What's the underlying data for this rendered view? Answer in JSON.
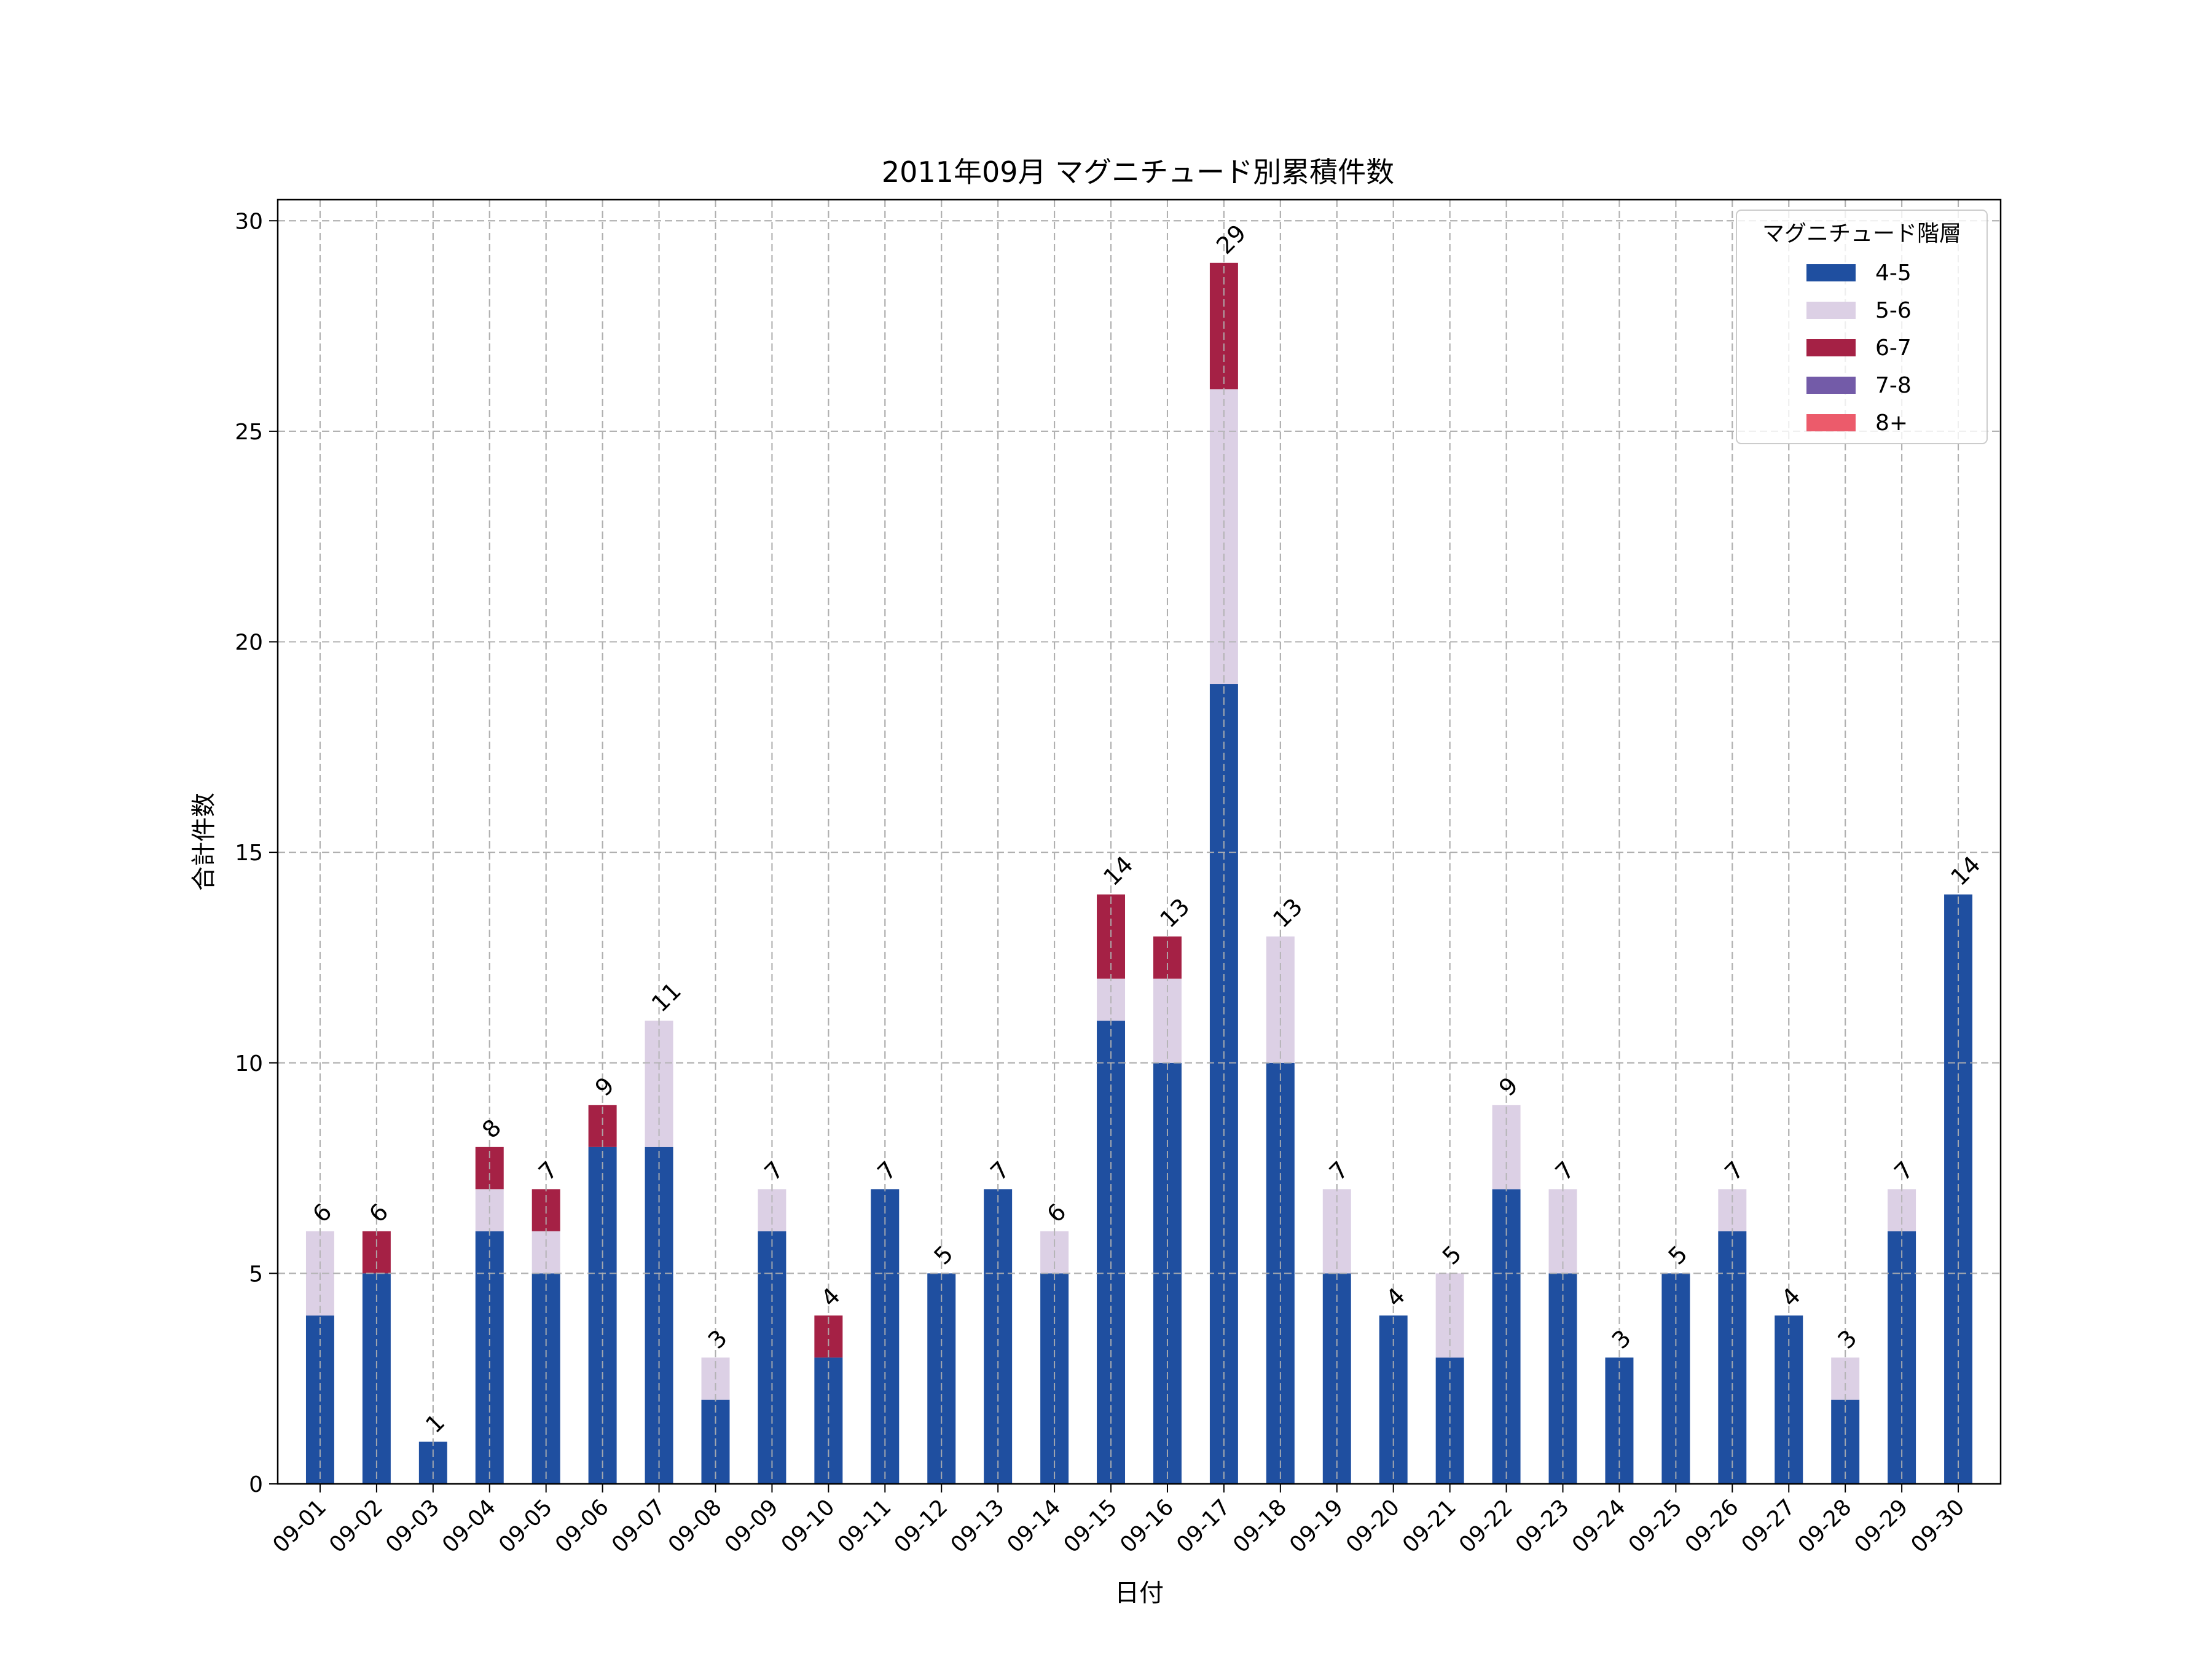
{
  "chart_data": {
    "type": "bar",
    "stacked": true,
    "title": "2011年09月 マグニチュード別累積件数",
    "xlabel": "日付",
    "ylabel": "合計件数",
    "ylim": [
      0,
      30.5
    ],
    "yticks": [
      0,
      5,
      10,
      15,
      20,
      25,
      30
    ],
    "grid": true,
    "legend_position": "top-right",
    "legend_title": "マグニチュード階層",
    "categories": [
      "09-01",
      "09-02",
      "09-03",
      "09-04",
      "09-05",
      "09-06",
      "09-07",
      "09-08",
      "09-09",
      "09-10",
      "09-11",
      "09-12",
      "09-13",
      "09-14",
      "09-15",
      "09-16",
      "09-17",
      "09-18",
      "09-19",
      "09-20",
      "09-21",
      "09-22",
      "09-23",
      "09-24",
      "09-25",
      "09-26",
      "09-27",
      "09-28",
      "09-29",
      "09-30"
    ],
    "series": [
      {
        "name": "4-5",
        "color": "#1f4fa0",
        "values": [
          4,
          5,
          1,
          6,
          5,
          8,
          8,
          2,
          6,
          3,
          7,
          5,
          7,
          5,
          11,
          10,
          19,
          10,
          5,
          4,
          3,
          7,
          5,
          3,
          5,
          6,
          4,
          2,
          6,
          14
        ]
      },
      {
        "name": "5-6",
        "color": "#dcd0e5",
        "values": [
          2,
          0,
          0,
          1,
          1,
          0,
          3,
          1,
          1,
          0,
          0,
          0,
          0,
          1,
          1,
          2,
          7,
          3,
          2,
          0,
          2,
          2,
          2,
          0,
          0,
          1,
          0,
          1,
          1,
          0
        ]
      },
      {
        "name": "6-7",
        "color": "#a52145",
        "values": [
          0,
          1,
          0,
          1,
          1,
          1,
          0,
          0,
          0,
          1,
          0,
          0,
          0,
          0,
          2,
          1,
          3,
          0,
          0,
          0,
          0,
          0,
          0,
          0,
          0,
          0,
          0,
          0,
          0,
          0
        ]
      },
      {
        "name": "7-8",
        "color": "#735ba8",
        "values": [
          0,
          0,
          0,
          0,
          0,
          0,
          0,
          0,
          0,
          0,
          0,
          0,
          0,
          0,
          0,
          0,
          0,
          0,
          0,
          0,
          0,
          0,
          0,
          0,
          0,
          0,
          0,
          0,
          0,
          0
        ]
      },
      {
        "name": "8+",
        "color": "#ec5b6b",
        "values": [
          0,
          0,
          0,
          0,
          0,
          0,
          0,
          0,
          0,
          0,
          0,
          0,
          0,
          0,
          0,
          0,
          0,
          0,
          0,
          0,
          0,
          0,
          0,
          0,
          0,
          0,
          0,
          0,
          0,
          0
        ]
      }
    ],
    "totals": [
      6,
      6,
      1,
      8,
      7,
      9,
      11,
      3,
      7,
      4,
      7,
      5,
      7,
      6,
      14,
      13,
      29,
      13,
      7,
      4,
      5,
      9,
      7,
      3,
      5,
      7,
      4,
      3,
      7,
      14
    ]
  }
}
